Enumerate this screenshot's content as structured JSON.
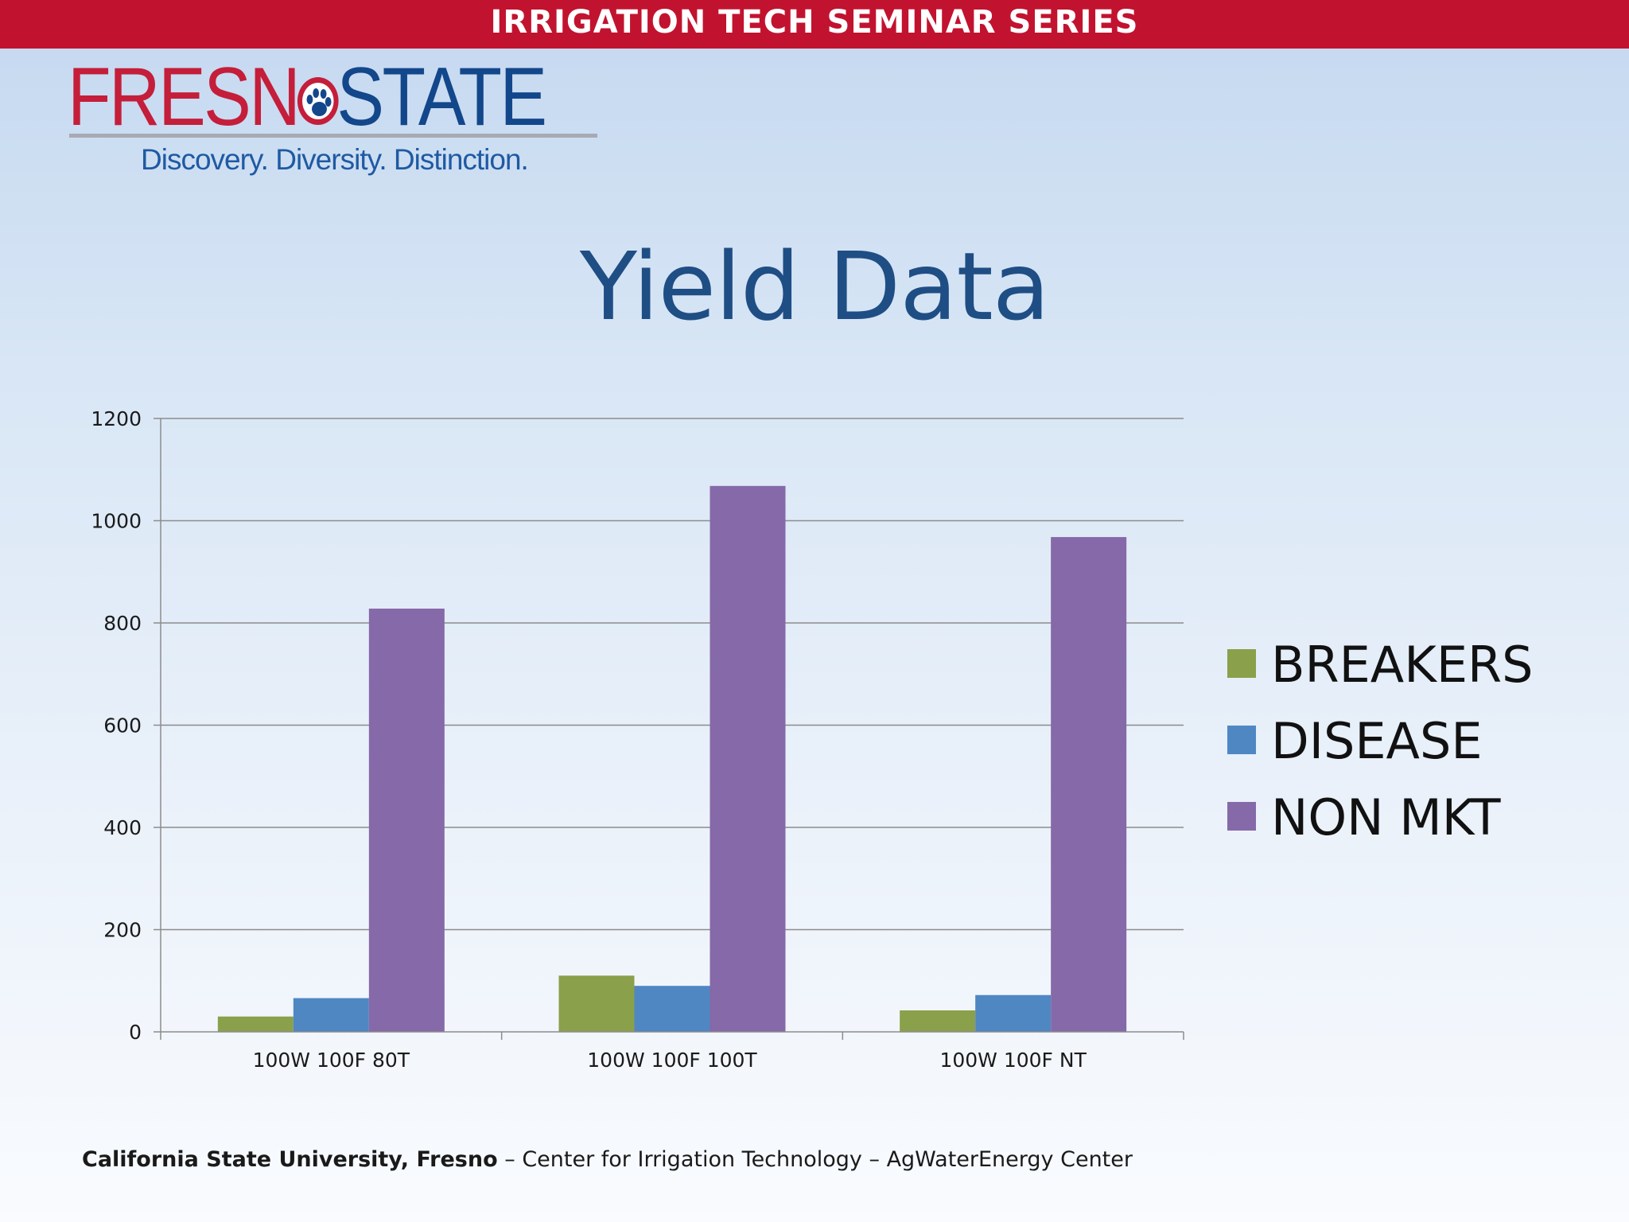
{
  "banner": {
    "text": "IRRIGATION TECH SEMINAR SERIES"
  },
  "logo": {
    "word_part1": "FRESN",
    "word_part2": "STATE",
    "tagline": "Discovery. Diversity. Distinction.",
    "paw_icon": "paw-print-icon"
  },
  "slide": {
    "title": "Yield Data"
  },
  "chart_data": {
    "type": "bar",
    "title": "",
    "xlabel": "",
    "ylabel": "",
    "categories": [
      "100W 100F 80T",
      "100W 100F 100T",
      "100W 100F NT"
    ],
    "series": [
      {
        "name": "BREAKERS",
        "color": "#8aa04b",
        "values": [
          30,
          110,
          42
        ]
      },
      {
        "name": "DISEASE",
        "color": "#4f87c3",
        "values": [
          66,
          90,
          72
        ]
      },
      {
        "name": "NON MKT",
        "color": "#8669a8",
        "values": [
          828,
          1068,
          968
        ]
      }
    ],
    "ylim": [
      0,
      1200
    ],
    "yticks": [
      0,
      200,
      400,
      600,
      800,
      1000,
      1200
    ],
    "ytick_labels": [
      "0",
      "200",
      "400",
      "600",
      "800",
      "1000",
      "1200"
    ],
    "grid": true,
    "legend_position": "right"
  },
  "footer": {
    "institution": "California State University, Fresno",
    "rest": " – Center for Irrigation Technology – AgWaterEnergy Center"
  }
}
